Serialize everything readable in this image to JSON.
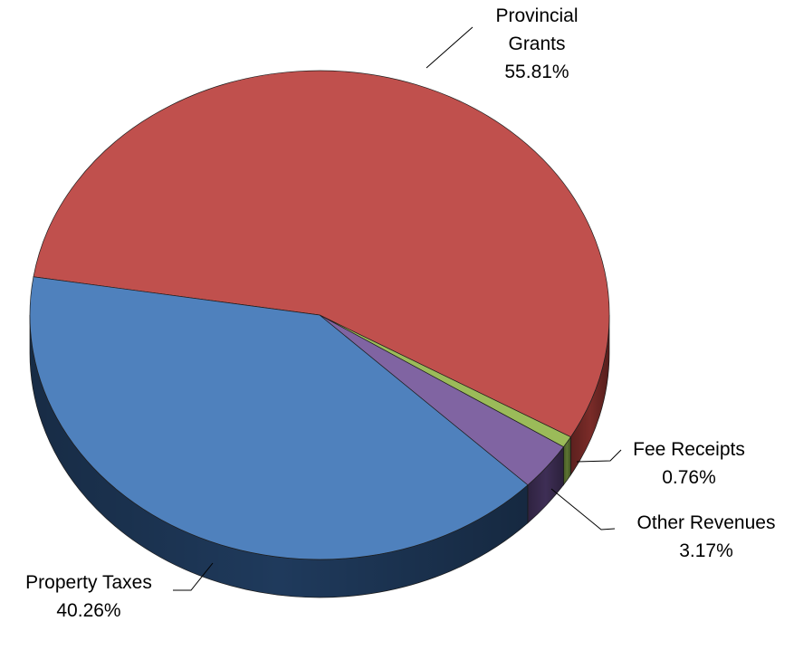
{
  "chart_data": {
    "type": "pie",
    "title": "",
    "slices": [
      {
        "name": "Provincial Grants",
        "label_lines": [
          "Provincial",
          "Grants"
        ],
        "value": 55.81,
        "value_label": "55.81%",
        "color": "#c0504d",
        "side_color": "#7a2b28"
      },
      {
        "name": "Fee Receipts",
        "label_lines": [
          "Fee Receipts"
        ],
        "value": 0.76,
        "value_label": "0.76%",
        "color": "#9bbb59",
        "side_color": "#5d7532"
      },
      {
        "name": "Other Revenues",
        "label_lines": [
          "Other Revenues"
        ],
        "value": 3.17,
        "value_label": "3.17%",
        "color": "#8064a2",
        "side_color": "#3e2e55"
      },
      {
        "name": "Property Taxes",
        "label_lines": [
          "Property Taxes"
        ],
        "value": 40.26,
        "value_label": "40.26%",
        "color": "#4f81bd",
        "side_color": "#1f3a5c"
      }
    ],
    "style": "3d-tilted",
    "legend": "none"
  }
}
